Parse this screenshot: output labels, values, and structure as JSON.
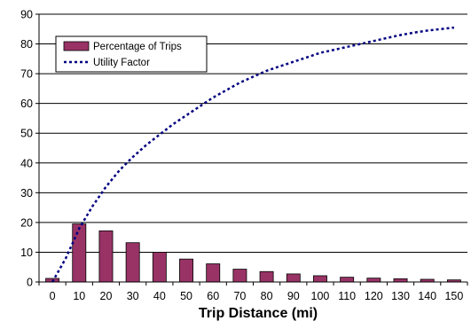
{
  "chart_data": {
    "type": "bar",
    "xlabel": "Trip Distance (mi)",
    "ylabel": "",
    "ylim": [
      0,
      90
    ],
    "yticks": [
      0,
      10,
      20,
      30,
      40,
      50,
      60,
      70,
      80,
      90
    ],
    "grid": "horizontal",
    "legend_position": "top-left",
    "categories": [
      "0",
      "10",
      "20",
      "30",
      "40",
      "50",
      "60",
      "70",
      "80",
      "90",
      "100",
      "110",
      "120",
      "130",
      "140",
      "150"
    ],
    "series": [
      {
        "name": "Percentage of Trips",
        "type": "bar",
        "color": "#993366",
        "values": [
          1.2,
          19.5,
          17.2,
          13.2,
          10.0,
          7.7,
          6.1,
          4.3,
          3.5,
          2.7,
          2.1,
          1.6,
          1.3,
          1.1,
          0.9,
          0.7
        ]
      },
      {
        "name": "Utility Factor",
        "type": "line",
        "style": "dotted",
        "color": "#000080",
        "x": [
          0,
          5,
          10,
          15,
          20,
          25,
          30,
          35,
          40,
          45,
          50,
          55,
          60,
          65,
          70,
          75,
          80,
          85,
          90,
          95,
          100,
          105,
          110,
          115,
          120,
          125,
          130,
          135,
          140,
          145,
          150
        ],
        "values": [
          0,
          8,
          18,
          25.5,
          32,
          37.5,
          42,
          46,
          49.5,
          53,
          56,
          59,
          62,
          64.5,
          67,
          69,
          71,
          72.5,
          74,
          75.5,
          77,
          78,
          79,
          80,
          81,
          82,
          83,
          83.8,
          84.5,
          85,
          85.5
        ]
      }
    ]
  }
}
